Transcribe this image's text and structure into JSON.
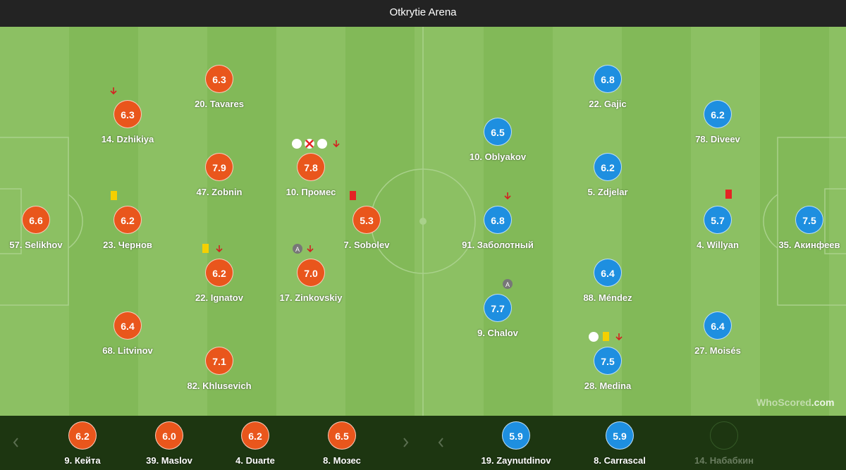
{
  "header": {
    "title": "Otkrytie Arena"
  },
  "home": [
    {
      "rating": "6.6",
      "label": "57. Selikhov"
    },
    {
      "rating": "6.3",
      "label": "14. Dzhikiya"
    },
    {
      "rating": "6.2",
      "label": "23. Чернов"
    },
    {
      "rating": "6.4",
      "label": "68. Litvinov"
    },
    {
      "rating": "6.3",
      "label": "20. Tavares"
    },
    {
      "rating": "7.9",
      "label": "47. Zobnin"
    },
    {
      "rating": "6.2",
      "label": "22. Ignatov"
    },
    {
      "rating": "7.1",
      "label": "82. Khlusevich"
    },
    {
      "rating": "7.8",
      "label": "10. Промес"
    },
    {
      "rating": "7.0",
      "label": "17. Zinkovskiy"
    },
    {
      "rating": "5.3",
      "label": "7. Sobolev"
    }
  ],
  "away": [
    {
      "rating": "7.5",
      "label": "35. Акинфеев"
    },
    {
      "rating": "6.2",
      "label": "78. Diveev"
    },
    {
      "rating": "5.7",
      "label": "4. Willyan"
    },
    {
      "rating": "6.4",
      "label": "27. Moisés"
    },
    {
      "rating": "6.8",
      "label": "22. Gajic"
    },
    {
      "rating": "6.2",
      "label": "5. Zdjelar"
    },
    {
      "rating": "6.4",
      "label": "88. Méndez"
    },
    {
      "rating": "7.5",
      "label": "28. Medina"
    },
    {
      "rating": "6.5",
      "label": "10. Oblyakov"
    },
    {
      "rating": "6.8",
      "label": "91. Заболотный"
    },
    {
      "rating": "7.7",
      "label": "9. Chalov"
    }
  ],
  "home_subs": [
    {
      "rating": "6.2",
      "label": "9. Кейта"
    },
    {
      "rating": "6.0",
      "label": "39. Maslov"
    },
    {
      "rating": "6.2",
      "label": "4. Duarte"
    },
    {
      "rating": "6.5",
      "label": "8. Мозес"
    }
  ],
  "away_subs": [
    {
      "rating": "5.9",
      "label": "19. Zaynutdinov"
    },
    {
      "rating": "5.9",
      "label": "8. Carrascal"
    },
    {
      "label": "14. Набабкин"
    }
  ],
  "watermark": {
    "left": "WhoScored",
    "right": "com"
  }
}
